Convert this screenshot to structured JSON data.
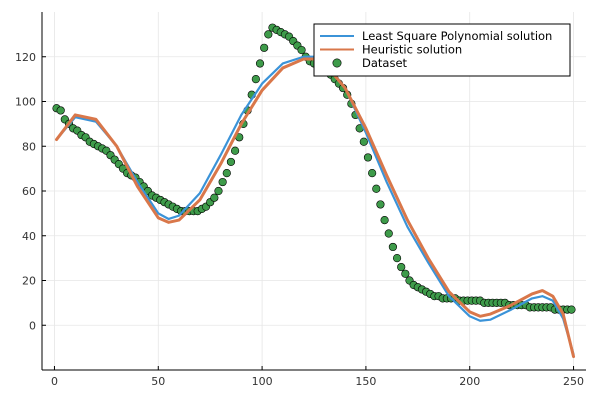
{
  "chart_data": {
    "type": "scatter",
    "title": "",
    "xlabel": "",
    "ylabel": "",
    "xlim": [
      -6,
      256
    ],
    "ylim": [
      -20,
      140
    ],
    "xticks": [
      0,
      50,
      100,
      150,
      200,
      250
    ],
    "yticks": [
      0,
      20,
      40,
      60,
      80,
      100,
      120
    ],
    "grid": true,
    "legend_position": "top-right",
    "series": [
      {
        "name": "Least Square Polynomial solution",
        "kind": "line",
        "color": "#3b93d8",
        "x": [
          1,
          10,
          20,
          30,
          40,
          50,
          55,
          60,
          70,
          80,
          90,
          100,
          110,
          120,
          125,
          130,
          140,
          150,
          160,
          170,
          180,
          190,
          200,
          205,
          210,
          220,
          230,
          235,
          240,
          245,
          250
        ],
        "y": [
          83,
          93,
          91,
          80,
          64,
          50,
          47.5,
          49,
          59,
          76,
          94,
          108,
          117,
          120,
          120,
          118,
          106,
          86,
          64,
          44,
          28,
          13,
          4,
          2,
          2.5,
          7,
          12,
          13,
          11,
          3,
          -13
        ]
      },
      {
        "name": "Heuristic solution",
        "kind": "line",
        "color": "#d9774a",
        "x": [
          1,
          10,
          20,
          30,
          40,
          50,
          55,
          60,
          70,
          80,
          90,
          100,
          110,
          120,
          125,
          130,
          140,
          150,
          160,
          170,
          180,
          190,
          200,
          205,
          210,
          220,
          230,
          235,
          240,
          245,
          250
        ],
        "y": [
          83,
          94,
          92,
          80,
          62,
          48,
          46,
          47,
          56,
          72,
          90,
          105,
          115,
          119,
          119,
          117,
          106,
          88,
          67,
          47,
          30,
          15,
          6,
          4,
          5,
          9,
          14,
          15.5,
          13,
          5,
          -14
        ]
      },
      {
        "name": "Dataset",
        "kind": "scatter",
        "color": "#3e9b4a",
        "x": [
          1,
          3,
          5,
          7,
          9,
          11,
          13,
          15,
          17,
          19,
          21,
          23,
          25,
          27,
          29,
          31,
          33,
          35,
          37,
          39,
          41,
          43,
          45,
          47,
          49,
          51,
          53,
          55,
          57,
          59,
          61,
          63,
          65,
          67,
          69,
          71,
          73,
          75,
          77,
          79,
          81,
          83,
          85,
          87,
          89,
          91,
          93,
          95,
          97,
          99,
          101,
          103,
          105,
          107,
          109,
          111,
          113,
          115,
          117,
          119,
          121,
          123,
          125,
          127,
          129,
          131,
          133,
          135,
          137,
          139,
          141,
          143,
          145,
          147,
          149,
          151,
          153,
          155,
          157,
          159,
          161,
          163,
          165,
          167,
          169,
          171,
          173,
          175,
          177,
          179,
          181,
          183,
          185,
          187,
          189,
          191,
          193,
          195,
          197,
          199,
          201,
          203,
          205,
          207,
          209,
          211,
          213,
          215,
          217,
          219,
          221,
          223,
          225,
          227,
          229,
          231,
          233,
          235,
          237,
          239,
          241,
          243,
          245,
          247,
          249
        ],
        "y": [
          97,
          96,
          92,
          90,
          88,
          87,
          85,
          84,
          82,
          81,
          80,
          79,
          78,
          76,
          74,
          72,
          70,
          68,
          67,
          66,
          64,
          62,
          60,
          58,
          57,
          56,
          55,
          54,
          53,
          52,
          51,
          51,
          51,
          51,
          51,
          52,
          53,
          55,
          57,
          60,
          64,
          68,
          73,
          78,
          84,
          90,
          96,
          103,
          110,
          117,
          124,
          130,
          133,
          132,
          131,
          130,
          129,
          127,
          125,
          123,
          120,
          118,
          117,
          115,
          114,
          113,
          112,
          110,
          108,
          106,
          103,
          99,
          94,
          88,
          82,
          75,
          68,
          61,
          54,
          47,
          41,
          35,
          30,
          26,
          23,
          20,
          18,
          17,
          16,
          15,
          14,
          13,
          13,
          12,
          12,
          12,
          12,
          11,
          11,
          11,
          11,
          11,
          11,
          10,
          10,
          10,
          10,
          10,
          10,
          9,
          9,
          9,
          9,
          9,
          8,
          8,
          8,
          8,
          8,
          8,
          7,
          7,
          7,
          7,
          7
        ]
      }
    ]
  }
}
